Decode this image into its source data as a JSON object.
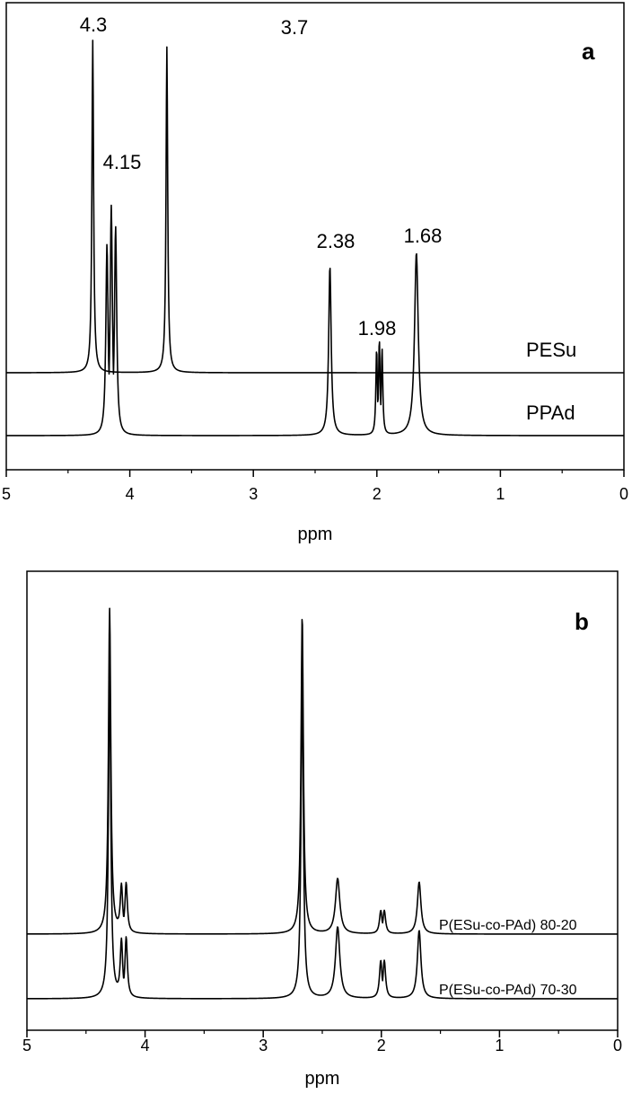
{
  "chart_data": [
    {
      "type": "line",
      "panel_label": "a",
      "xlabel": "ppm",
      "xlim": [
        5,
        0
      ],
      "x_reversed": true,
      "xticks": [
        "5",
        "4",
        "3",
        "2",
        "1",
        "0"
      ],
      "grid": false,
      "series": [
        {
          "name": "PESu",
          "peaks": [
            {
              "ppm": 4.3,
              "height": 1.0
            },
            {
              "ppm": 3.7,
              "height": 0.98
            }
          ]
        },
        {
          "name": "PPAd",
          "peaks": [
            {
              "ppm": 4.15,
              "height": 0.77
            },
            {
              "ppm": 2.38,
              "height": 0.51
            },
            {
              "ppm": 1.98,
              "height": 0.29
            },
            {
              "ppm": 1.68,
              "height": 0.55
            }
          ]
        }
      ],
      "annotations": [
        {
          "text": "4.3",
          "ppm": 4.3
        },
        {
          "text": "4.15",
          "ppm": 4.15
        },
        {
          "text": "3.7",
          "ppm": 3.7
        },
        {
          "text": "2.38",
          "ppm": 2.38
        },
        {
          "text": "1.98",
          "ppm": 1.98
        },
        {
          "text": "1.68",
          "ppm": 1.68
        }
      ]
    },
    {
      "type": "line",
      "panel_label": "b",
      "xlabel": "ppm",
      "xlim": [
        5,
        0
      ],
      "x_reversed": true,
      "xticks": [
        "5",
        "4",
        "3",
        "2",
        "1",
        "0"
      ],
      "grid": false,
      "series": [
        {
          "name": "P(ESu-co-PAd) 80-20",
          "peaks": [
            {
              "ppm": 4.3,
              "height": 1.0
            },
            {
              "ppm": 4.18,
              "height": 0.19
            },
            {
              "ppm": 2.67,
              "height": 0.98
            },
            {
              "ppm": 2.37,
              "height": 0.17
            },
            {
              "ppm": 1.99,
              "height": 0.08
            },
            {
              "ppm": 1.68,
              "height": 0.16
            }
          ]
        },
        {
          "name": "P(ESu-co-PAd) 70-30",
          "peaks": [
            {
              "ppm": 4.3,
              "height": 1.0
            },
            {
              "ppm": 4.18,
              "height": 0.23
            },
            {
              "ppm": 2.67,
              "height": 0.98
            },
            {
              "ppm": 2.37,
              "height": 0.22
            },
            {
              "ppm": 1.99,
              "height": 0.13
            },
            {
              "ppm": 1.68,
              "height": 0.21
            }
          ]
        }
      ]
    }
  ]
}
